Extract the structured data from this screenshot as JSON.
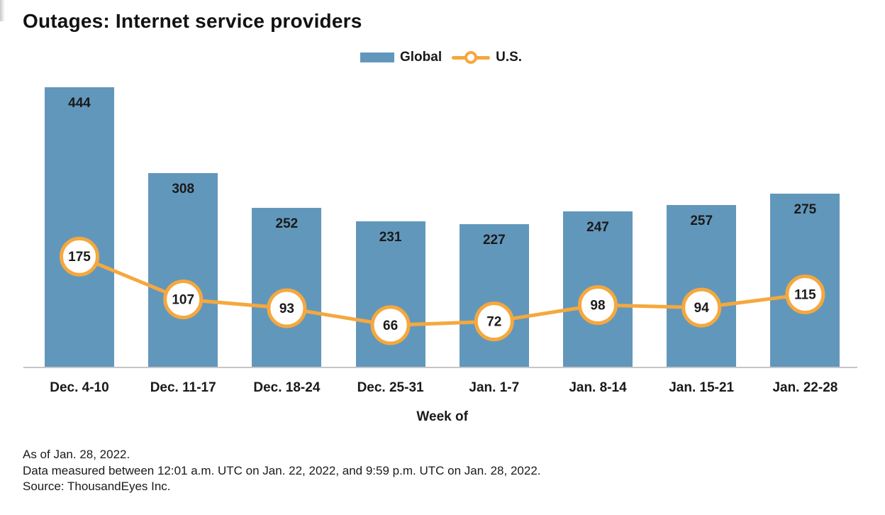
{
  "title": "Outages: Internet service providers",
  "chart_data": {
    "type": "bar",
    "title": "Outages: Internet service providers",
    "categories": [
      "Dec. 4-10",
      "Dec. 11-17",
      "Dec. 18-24",
      "Dec. 25-31",
      "Jan. 1-7",
      "Jan. 8-14",
      "Jan. 15-21",
      "Jan. 22-28"
    ],
    "series": [
      {
        "name": "Global",
        "type": "bar",
        "color": "#6297BC",
        "values": [
          444,
          308,
          252,
          231,
          227,
          247,
          257,
          275
        ]
      },
      {
        "name": "U.S.",
        "type": "line",
        "color": "#F5A83E",
        "marker_fill": "#FFFFFF",
        "values": [
          175,
          107,
          93,
          66,
          72,
          98,
          94,
          115
        ]
      }
    ],
    "xlabel": "Week of",
    "ylabel": "",
    "ylim": [
      0,
      460
    ],
    "grid": false,
    "legend_position": "top",
    "value_labels": true
  },
  "colors": {
    "bar": "#6297BC",
    "line": "#F5A83E",
    "marker_fill": "#FFFFFF",
    "axis_line": "#C6C6C6",
    "text": "#1A1A1A"
  },
  "footer": {
    "line1": "As of Jan. 28, 2022.",
    "line2": "Data measured between 12:01 a.m. UTC on Jan. 22, 2022, and 9:59 p.m. UTC on Jan. 28, 2022.",
    "line3": "Source: ThousandEyes Inc."
  }
}
